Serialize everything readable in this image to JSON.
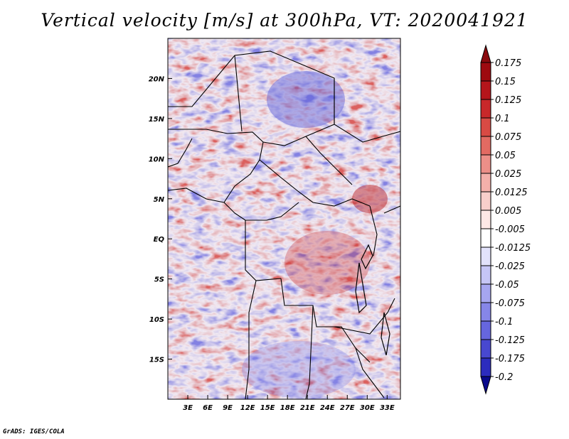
{
  "title": "Vertical velocity [m/s] at 300hPa, VT: 2020041921",
  "footer": "GrADS: IGES/COLA",
  "map": {
    "lon_range": [
      0,
      35
    ],
    "lat_range": [
      -20,
      25
    ],
    "lat_ticks": [
      {
        "value": 20,
        "label": "20N"
      },
      {
        "value": 15,
        "label": "15N"
      },
      {
        "value": 10,
        "label": "10N"
      },
      {
        "value": 5,
        "label": "5N"
      },
      {
        "value": 0,
        "label": "EQ"
      },
      {
        "value": -5,
        "label": "5S"
      },
      {
        "value": -10,
        "label": "10S"
      },
      {
        "value": -15,
        "label": "15S"
      }
    ],
    "lon_ticks": [
      {
        "value": 3,
        "label": "3E"
      },
      {
        "value": 6,
        "label": "6E"
      },
      {
        "value": 9,
        "label": "9E"
      },
      {
        "value": 12,
        "label": "12E"
      },
      {
        "value": 15,
        "label": "15E"
      },
      {
        "value": 18,
        "label": "18E"
      },
      {
        "value": 21,
        "label": "21E"
      },
      {
        "value": 24,
        "label": "24E"
      },
      {
        "value": 27,
        "label": "27E"
      },
      {
        "value": 30,
        "label": "30E"
      },
      {
        "value": 33,
        "label": "33E"
      }
    ]
  },
  "colorbar": {
    "levels": [
      {
        "label": "0.175",
        "color": "#9e0a10"
      },
      {
        "label": "0.15",
        "color": "#b5151b"
      },
      {
        "label": "0.125",
        "color": "#c8282a"
      },
      {
        "label": "0.1",
        "color": "#d84a44"
      },
      {
        "label": "0.075",
        "color": "#e26a62"
      },
      {
        "label": "0.05",
        "color": "#ec8f88"
      },
      {
        "label": "0.025",
        "color": "#f4b0aa"
      },
      {
        "label": "0.0125",
        "color": "#f9cfcb"
      },
      {
        "label": "0.005",
        "color": "#fde8e6"
      },
      {
        "label": "-0.005",
        "color": "#ffffff"
      },
      {
        "label": "-0.0125",
        "color": "#e2e2fb"
      },
      {
        "label": "-0.025",
        "color": "#c6c6f6"
      },
      {
        "label": "-0.05",
        "color": "#a6a6f0"
      },
      {
        "label": "-0.075",
        "color": "#8686e8"
      },
      {
        "label": "-0.1",
        "color": "#6666de"
      },
      {
        "label": "-0.125",
        "color": "#4848d0"
      },
      {
        "label": "-0.175",
        "color": "#2c2cbe"
      },
      {
        "label": "-0.2",
        "color": "#1515a6"
      }
    ],
    "top_color": "#8a0a0e",
    "bottom_color": "#0a0a8c"
  }
}
